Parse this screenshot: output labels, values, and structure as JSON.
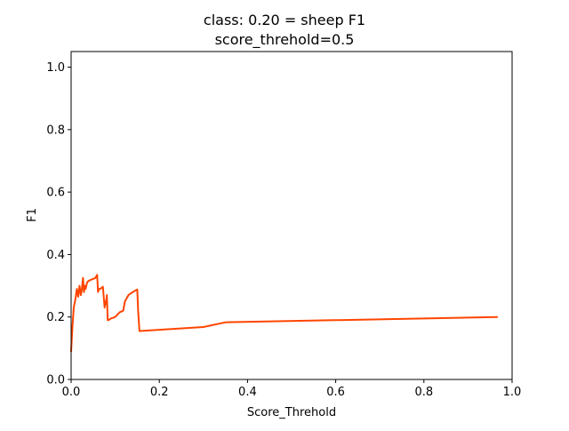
{
  "chart_data": {
    "type": "line",
    "title_line1": "class: 0.20 = sheep F1",
    "title_line2": "score_threhold=0.5",
    "xlabel": "Score_Threhold",
    "ylabel": "F1",
    "xlim": [
      0.0,
      1.0
    ],
    "ylim": [
      0.0,
      1.05
    ],
    "xticks": [
      0.0,
      0.2,
      0.4,
      0.6,
      0.8,
      1.0
    ],
    "xtick_labels": [
      "0.0",
      "0.2",
      "0.4",
      "0.6",
      "0.8",
      "1.0"
    ],
    "yticks": [
      0.0,
      0.2,
      0.4,
      0.6,
      0.8,
      1.0
    ],
    "ytick_labels": [
      "0.0",
      "0.2",
      "0.4",
      "0.6",
      "0.8",
      "1.0"
    ],
    "grid": false,
    "series": [
      {
        "color": "#ff4500",
        "x": [
          0.0,
          0.003,
          0.006,
          0.01,
          0.013,
          0.016,
          0.019,
          0.022,
          0.024,
          0.027,
          0.029,
          0.031,
          0.033,
          0.036,
          0.039,
          0.043,
          0.05,
          0.055,
          0.059,
          0.061,
          0.063,
          0.066,
          0.072,
          0.076,
          0.077,
          0.079,
          0.081,
          0.083,
          0.085,
          0.09,
          0.1,
          0.11,
          0.118,
          0.122,
          0.13,
          0.14,
          0.15,
          0.152,
          0.155,
          0.3,
          0.35,
          0.966
        ],
        "y": [
          0.09,
          0.17,
          0.23,
          0.26,
          0.29,
          0.265,
          0.3,
          0.27,
          0.285,
          0.325,
          0.28,
          0.3,
          0.29,
          0.31,
          0.315,
          0.318,
          0.322,
          0.325,
          0.335,
          0.28,
          0.29,
          0.29,
          0.297,
          0.23,
          0.25,
          0.24,
          0.27,
          0.19,
          0.19,
          0.195,
          0.2,
          0.215,
          0.22,
          0.25,
          0.27,
          0.28,
          0.288,
          0.22,
          0.155,
          0.168,
          0.183,
          0.2
        ]
      }
    ]
  }
}
